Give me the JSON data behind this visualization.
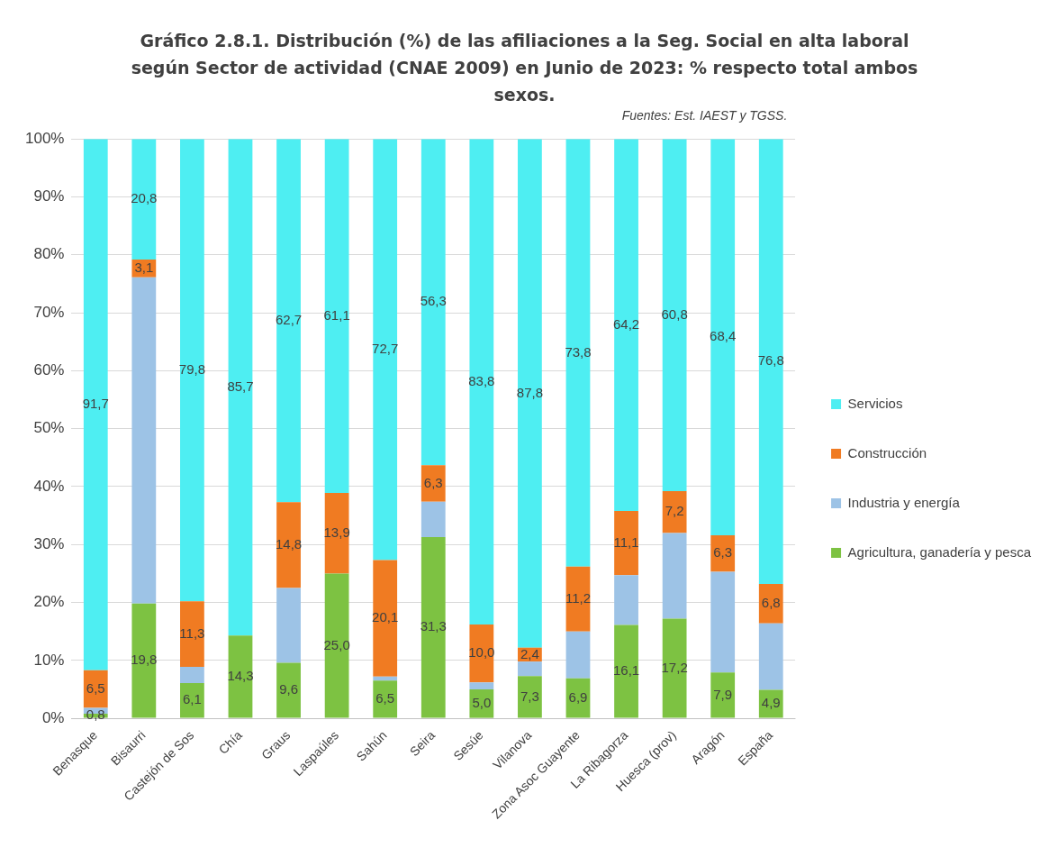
{
  "chart_data": {
    "type": "bar",
    "stacked": true,
    "title": "Gráfico 2.8.1. Distribución (%) de las afiliaciones a la Seg. Social en alta laboral según Sector de actividad (CNAE 2009) en Junio de 2023: % respecto total ambos sexos.",
    "annotations": [
      "Fuentes: Est. IAEST y TGSS."
    ],
    "categories": [
      "Benasque",
      "Bisaurri",
      "Castejón de Sos",
      "Chía",
      "Graus",
      "Laspaúles",
      "Sahún",
      "Seira",
      "Sesúe",
      "Vilanova",
      "Zona Asoc Guayente",
      "La Ribagorza",
      "Huesca (prov)",
      "Aragón",
      "España"
    ],
    "series": [
      {
        "name": "Agricultura, ganadería y pesca",
        "color": "#7dc242",
        "values": [
          0.8,
          19.8,
          6.1,
          14.3,
          9.6,
          25.0,
          6.5,
          31.3,
          5.0,
          7.3,
          6.9,
          16.1,
          17.2,
          7.9,
          4.9
        ],
        "value_labels": [
          "0,8",
          "19,8",
          "6,1",
          "14,3",
          "9,6",
          "25,0",
          "6,5",
          "31,3",
          "5,0",
          "7,3",
          "6,9",
          "16,1",
          "17,2",
          "7,9",
          "4,9"
        ]
      },
      {
        "name": "Industria y energía",
        "color": "#9dc3e6",
        "values": [
          1.0,
          56.3,
          2.8,
          0,
          12.9,
          0,
          0.7,
          6.1,
          1.2,
          2.5,
          8.1,
          8.6,
          14.8,
          17.4,
          11.5
        ]
      },
      {
        "name": "Construcción",
        "color": "#f07b22",
        "values": [
          6.5,
          3.1,
          11.3,
          0,
          14.8,
          13.9,
          20.1,
          6.3,
          10.0,
          2.4,
          11.2,
          11.1,
          7.2,
          6.3,
          6.8
        ],
        "value_labels": [
          "6,5",
          "3,1",
          "11,3",
          null,
          "14,8",
          "13,9",
          "20,1",
          "6,3",
          "10,0",
          "2,4",
          "11,2",
          "11,1",
          "7,2",
          "6,3",
          "6,8"
        ]
      },
      {
        "name": "Servicios",
        "color": "#4eeef2",
        "values": [
          91.7,
          20.8,
          79.8,
          85.7,
          62.7,
          61.1,
          72.7,
          56.3,
          83.8,
          87.8,
          73.8,
          64.2,
          60.8,
          68.4,
          76.8
        ],
        "value_labels": [
          "91,7",
          "20,8",
          "79,8",
          "85,7",
          "62,7",
          "61,1",
          "72,7",
          "56,3",
          "83,8",
          "87,8",
          "73,8",
          "64,2",
          "60,8",
          "68,4",
          "76,8"
        ]
      }
    ],
    "ylim": [
      0,
      100
    ],
    "yticks": [
      {
        "value": 0,
        "label": "0%"
      },
      {
        "value": 10,
        "label": "10%"
      },
      {
        "value": 20,
        "label": "20%"
      },
      {
        "value": 30,
        "label": "30%"
      },
      {
        "value": 40,
        "label": "40%"
      },
      {
        "value": 50,
        "label": "50%"
      },
      {
        "value": 60,
        "label": "60%"
      },
      {
        "value": 70,
        "label": "70%"
      },
      {
        "value": 80,
        "label": "80%"
      },
      {
        "value": 90,
        "label": "90%"
      },
      {
        "value": 100,
        "label": "100%"
      }
    ],
    "grid": "y",
    "legend": "right"
  }
}
